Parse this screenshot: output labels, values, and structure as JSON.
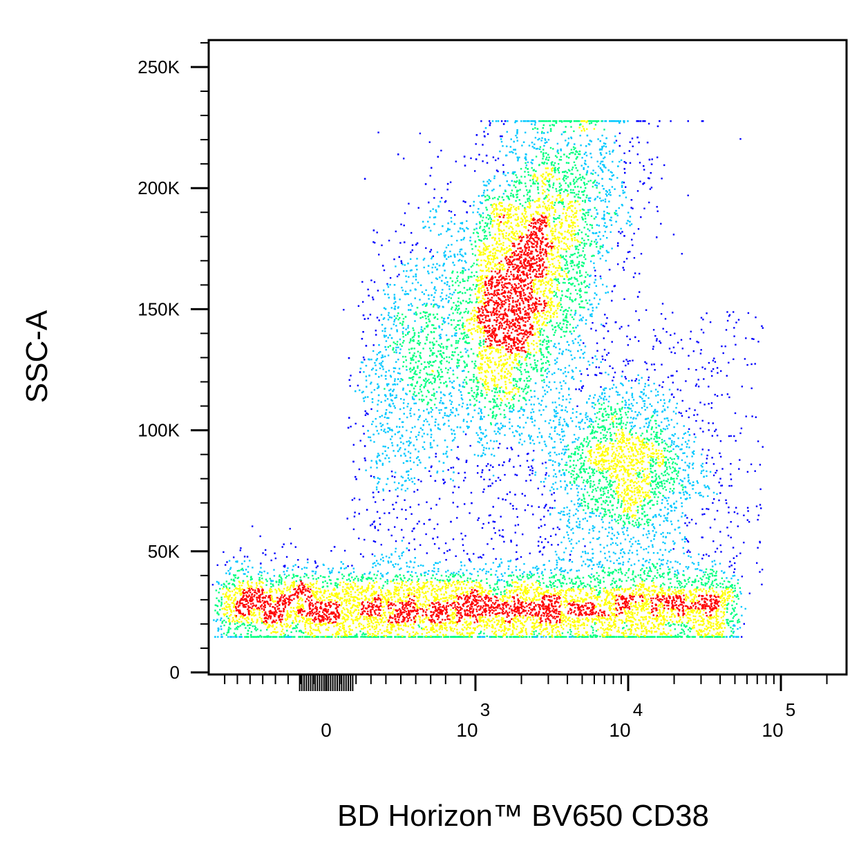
{
  "chart_data": {
    "type": "scatter",
    "subtype": "flow-cytometry-pseudocolor-density",
    "xlabel": "BD Horizon™ BV650 CD38",
    "ylabel": "SSC-A",
    "x_scale": "biexponential",
    "x_ticks": [
      {
        "value": 0,
        "label": "0",
        "exp": ""
      },
      {
        "value": 1000,
        "label": "10",
        "exp": "3"
      },
      {
        "value": 10000,
        "label": "10",
        "exp": "4"
      },
      {
        "value": 100000,
        "label": "10",
        "exp": "5"
      }
    ],
    "y_scale": "linear",
    "ylim": [
      0,
      262144
    ],
    "y_ticks": [
      {
        "value": 0,
        "label": "0"
      },
      {
        "value": 50000,
        "label": "50K"
      },
      {
        "value": 100000,
        "label": "100K"
      },
      {
        "value": 150000,
        "label": "150K"
      },
      {
        "value": 200000,
        "label": "200K"
      },
      {
        "value": 250000,
        "label": "250K"
      }
    ],
    "grid": false,
    "legend": "none",
    "colormap": [
      "#0000ff",
      "#00c8ff",
      "#00ff80",
      "#ffff00",
      "#ff0000"
    ],
    "populations": [
      {
        "desc": "debris / low-SSC band",
        "x_center": 300,
        "x_spread": 0.9,
        "ssc_center": 27000,
        "ssc_spread": 9000,
        "share": 0.42
      },
      {
        "desc": "high-SSC granulocyte-like cluster",
        "x_center": 1700,
        "x_spread": 0.35,
        "ssc_center": 158000,
        "ssc_spread": 30000,
        "share": 0.43
      },
      {
        "desc": "CD38-high mid-SSC cluster",
        "x_center": 9000,
        "x_spread": 0.25,
        "ssc_center": 85000,
        "ssc_spread": 18000,
        "share": 0.12
      }
    ]
  }
}
